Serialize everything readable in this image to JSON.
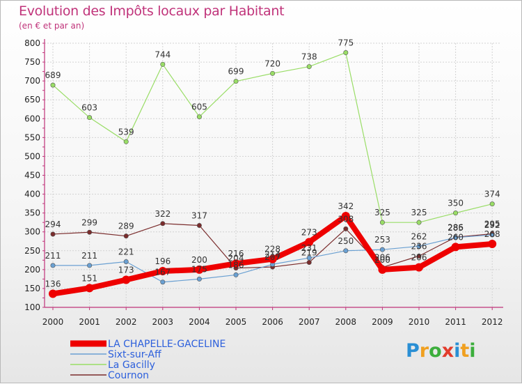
{
  "title": "Evolution des Impôts locaux par Habitant",
  "subtitle": "(en € et par an)",
  "brand": {
    "letters": [
      "P",
      "r",
      "o",
      "x",
      "i",
      "t",
      "i"
    ],
    "colors": [
      "#2a8fd4",
      "#f0a020",
      "#3cae3c",
      "#e23c2c",
      "#2a8fd4",
      "#f0a020",
      "#3cae3c"
    ]
  },
  "chart_data": {
    "type": "line",
    "title": "Evolution des Impôts locaux par Habitant",
    "subtitle": "(en € et par an)",
    "xlabel": "",
    "ylabel": "",
    "ylim": [
      100,
      800
    ],
    "yticks": [
      100,
      150,
      200,
      250,
      300,
      350,
      400,
      450,
      500,
      550,
      600,
      650,
      700,
      750,
      800
    ],
    "categories": [
      "2000",
      "2001",
      "2002",
      "2003",
      "2004",
      "2005",
      "2006",
      "2007",
      "2008",
      "2009",
      "2010",
      "2011",
      "2012"
    ],
    "grid": true,
    "legend_position": "bottom-left",
    "series": [
      {
        "name": "La Gacilly",
        "color": "#99dd66",
        "width": 1.2,
        "values": [
          689,
          603,
          539,
          744,
          605,
          699,
          720,
          738,
          775,
          325,
          325,
          350,
          374
        ],
        "labels": [
          "689",
          "603",
          "539",
          "744",
          "605",
          "699",
          "720",
          "738",
          "775",
          "325",
          "325",
          "350",
          "374"
        ]
      },
      {
        "name": "Cournon",
        "color": "#7a2c2c",
        "width": 1.2,
        "values": [
          294,
          299,
          289,
          322,
          317,
          204,
          207,
          219,
          308,
          206,
          236,
          286,
          295
        ],
        "labels": [
          "294",
          "299",
          "289",
          "322",
          "317",
          "204",
          "207",
          "219",
          "308",
          "206",
          "236",
          "286",
          "295"
        ]
      },
      {
        "name": "Sixt-sur-Aff",
        "color": "#6aa0d2",
        "width": 1.2,
        "values": [
          211,
          211,
          221,
          167,
          175,
          186,
          214,
          231,
          250,
          253,
          262,
          285,
          292
        ],
        "labels": [
          "211",
          "211",
          "221",
          "167",
          "175",
          "186",
          "214",
          "231",
          "250",
          "253",
          "262",
          "285",
          "292"
        ]
      },
      {
        "name": "LA CHAPELLE-GACELINE",
        "color": "#ee0000",
        "width": 8,
        "values": [
          136,
          151,
          173,
          196,
          200,
          216,
          228,
          273,
          342,
          200,
          206,
          260,
          268
        ],
        "labels": [
          "136",
          "151",
          "173",
          "196",
          "200",
          "216",
          "228",
          "273",
          "342",
          "200",
          "206",
          "260",
          "268"
        ]
      }
    ],
    "legend": [
      "LA CHAPELLE-GACELINE",
      "Sixt-sur-Aff",
      "La Gacilly",
      "Cournon"
    ]
  }
}
